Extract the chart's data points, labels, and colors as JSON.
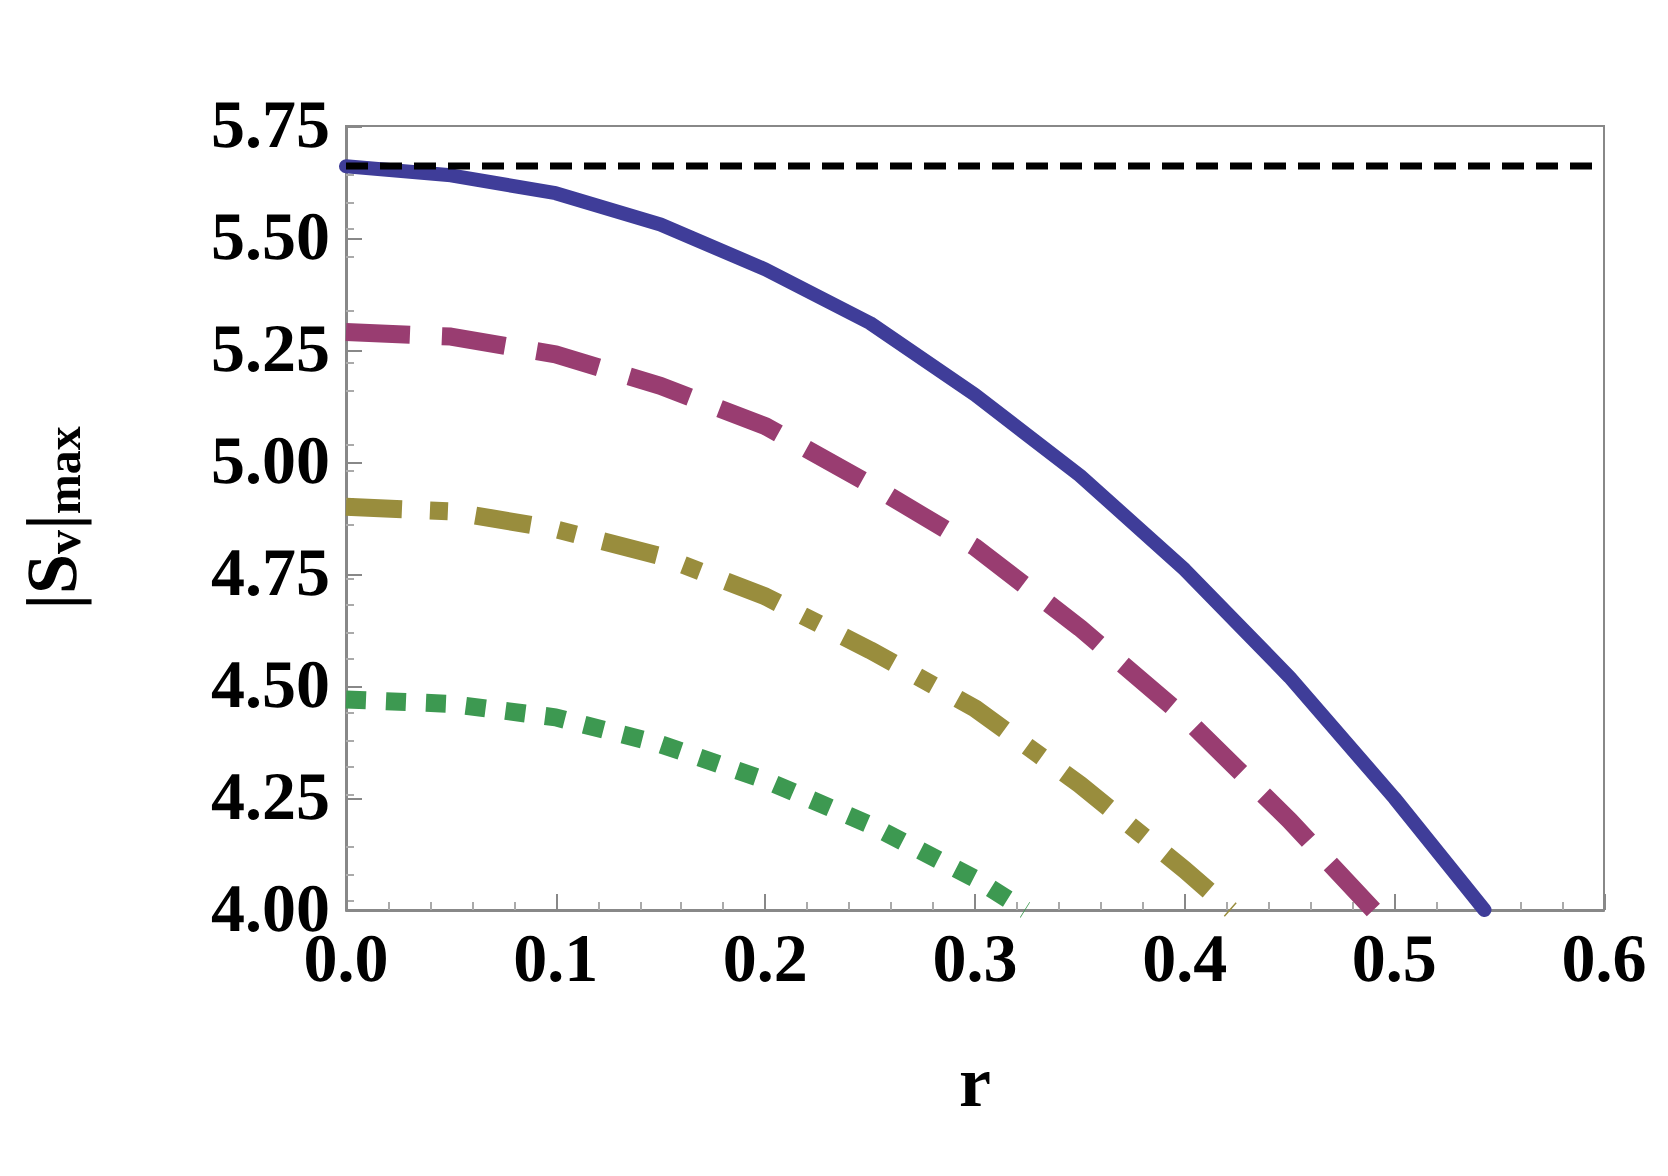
{
  "chart_data": {
    "type": "line",
    "xlabel": "r",
    "ylabel": "|S$_{v}$|$_{max}$",
    "xlim": [
      0,
      0.6
    ],
    "xticks": [
      {
        "value": 0,
        "label": "0.0"
      },
      {
        "value": 0.1,
        "label": "0.1"
      },
      {
        "value": 0.2,
        "label": "0.2"
      },
      {
        "value": 0.3,
        "label": "0.3"
      },
      {
        "value": 0.4,
        "label": "0.4"
      },
      {
        "value": 0.5,
        "label": "0.5"
      },
      {
        "value": 0.6,
        "label": "0.6"
      }
    ],
    "ylim": [
      4,
      5.75
    ],
    "yticks": [
      {
        "value": 4,
        "label": "4.00"
      },
      {
        "value": 4.25,
        "label": "4.25"
      },
      {
        "value": 4.5,
        "label": "4.50"
      },
      {
        "value": 4.75,
        "label": "4.75"
      },
      {
        "value": 5,
        "label": "5.00"
      },
      {
        "value": 5.25,
        "label": "5.25"
      },
      {
        "value": 5.5,
        "label": "5.50"
      },
      {
        "value": 5.75,
        "label": "5.75"
      }
    ],
    "marker": "none",
    "series": [
      {
        "color": "#3f3d99",
        "line_style": "solid",
        "x": [
          0,
          0.05,
          0.1,
          0.15,
          0.2,
          0.25,
          0.3,
          0.35,
          0.4,
          0.45,
          0.5,
          0.543
        ],
        "values": [
          5.66,
          5.64,
          5.6,
          5.53,
          5.43,
          5.31,
          5.15,
          4.97,
          4.76,
          4.52,
          4.25,
          4.0
        ]
      },
      {
        "color": "#993d71",
        "line_style": "dashed",
        "x": [
          0,
          0.05,
          0.1,
          0.15,
          0.2,
          0.25,
          0.3,
          0.35,
          0.4,
          0.45,
          0.49
        ],
        "values": [
          5.29,
          5.28,
          5.24,
          5.17,
          5.08,
          4.95,
          4.81,
          4.63,
          4.43,
          4.2,
          4.0
        ]
      },
      {
        "color": "#998d3d",
        "line_style": "dashdot",
        "x": [
          0,
          0.05,
          0.1,
          0.15,
          0.2,
          0.25,
          0.3,
          0.35,
          0.4,
          0.422
        ],
        "values": [
          4.9,
          4.89,
          4.85,
          4.79,
          4.7,
          4.58,
          4.45,
          4.28,
          4.09,
          4.0
        ]
      },
      {
        "color": "#3d9951",
        "line_style": "dotted",
        "x": [
          0,
          0.05,
          0.1,
          0.15,
          0.2,
          0.25,
          0.3,
          0.324
        ],
        "values": [
          4.47,
          4.46,
          4.43,
          4.37,
          4.29,
          4.19,
          4.07,
          4.0
        ]
      }
    ],
    "ref_lines": [
      {
        "axis": "y",
        "value": 5.657,
        "color": "#000000",
        "line_style": "dashed"
      }
    ]
  }
}
